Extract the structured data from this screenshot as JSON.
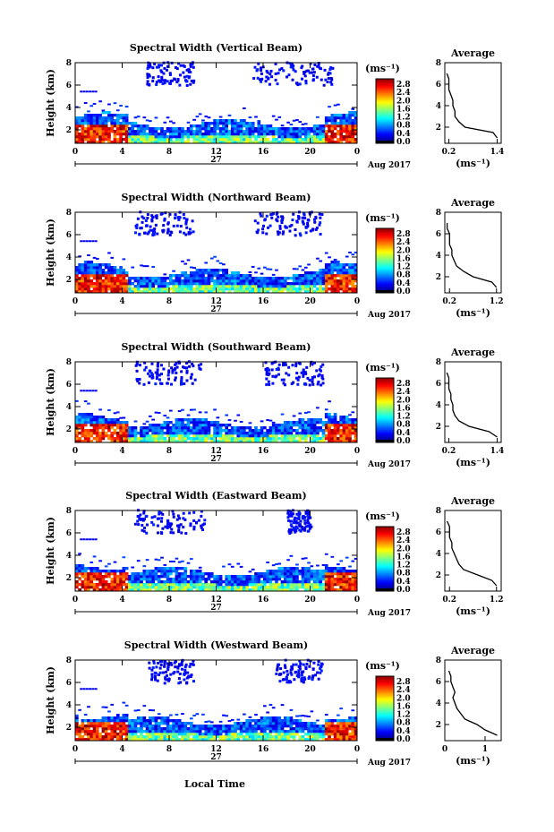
{
  "figure": {
    "xlabel": "Local Time",
    "date_label": "Aug 2017",
    "day_label": "27",
    "ylabel": "Height (km)",
    "cbar_unit": "(ms⁻¹)",
    "cbar_ticks": [
      "2.8",
      "2.4",
      "2.0",
      "1.6",
      "1.2",
      "0.8",
      "0.4",
      "0.0"
    ],
    "avg_title": "Average",
    "avg_xlabel": "(ms⁻¹)"
  },
  "chart_data": [
    {
      "type": "heatmap",
      "title": "Spectral Width (Vertical Beam)",
      "x_ticks": [
        "0",
        "4",
        "8",
        "12",
        "16",
        "20",
        "0"
      ],
      "xlim": [
        0,
        24
      ],
      "y_ticks": [
        "2",
        "4",
        "6",
        "8"
      ],
      "ylim": [
        0.8,
        8
      ],
      "clim": [
        0,
        2.8
      ],
      "upper_cloud": [
        [
          6,
          10
        ],
        [
          15,
          22
        ]
      ],
      "profile": {
        "title": "Average",
        "x_ticks": [
          "0.2",
          "1.4"
        ],
        "xlim": [
          0.1,
          1.5
        ],
        "y_ticks": [
          "2",
          "4",
          "6",
          "8"
        ],
        "heights": [
          1.0,
          1.5,
          2.0,
          2.5,
          3.0,
          3.5,
          4.0,
          4.5,
          5.0,
          5.5,
          6.0,
          6.5,
          7.0
        ],
        "values": [
          1.4,
          1.3,
          0.6,
          0.45,
          0.35,
          0.35,
          0.3,
          0.3,
          0.25,
          0.2,
          0.2,
          0.2,
          0.15
        ]
      }
    },
    {
      "type": "heatmap",
      "title": "Spectral Width (Northward Beam)",
      "x_ticks": [
        "0",
        "4",
        "8",
        "12",
        "16",
        "20",
        "0"
      ],
      "xlim": [
        0,
        24
      ],
      "y_ticks": [
        "2",
        "4",
        "6",
        "8"
      ],
      "ylim": [
        0.8,
        8
      ],
      "clim": [
        0,
        2.8
      ],
      "upper_cloud": [
        [
          5,
          10
        ],
        [
          15,
          21
        ]
      ],
      "profile": {
        "title": "Average",
        "x_ticks": [
          "0.2",
          "1.2"
        ],
        "xlim": [
          0.1,
          1.3
        ],
        "y_ticks": [
          "2",
          "4",
          "6",
          "8"
        ],
        "heights": [
          1.0,
          1.5,
          2.0,
          2.5,
          3.0,
          3.5,
          4.0,
          4.5,
          5.0,
          5.5,
          6.0,
          6.5,
          7.0
        ],
        "values": [
          1.2,
          1.1,
          0.7,
          0.5,
          0.35,
          0.3,
          0.25,
          0.25,
          0.2,
          0.2,
          0.2,
          0.15,
          0.15
        ]
      }
    },
    {
      "type": "heatmap",
      "title": "Spectral Width (Southward Beam)",
      "x_ticks": [
        "0",
        "4",
        "8",
        "12",
        "16",
        "20",
        "0"
      ],
      "xlim": [
        0,
        24
      ],
      "y_ticks": [
        "2",
        "4",
        "6",
        "8"
      ],
      "ylim": [
        0.8,
        8
      ],
      "clim": [
        0,
        2.8
      ],
      "upper_cloud": [
        [
          5,
          11
        ],
        [
          16,
          21
        ]
      ],
      "profile": {
        "title": "Average",
        "x_ticks": [
          "0.2",
          "1.4"
        ],
        "xlim": [
          0.1,
          1.5
        ],
        "y_ticks": [
          "2",
          "4",
          "6",
          "8"
        ],
        "heights": [
          1.0,
          1.5,
          2.0,
          2.5,
          3.0,
          3.5,
          4.0,
          4.5,
          5.0,
          5.5,
          6.0,
          6.5,
          7.0
        ],
        "values": [
          1.4,
          1.2,
          0.7,
          0.45,
          0.35,
          0.3,
          0.3,
          0.25,
          0.25,
          0.2,
          0.2,
          0.2,
          0.15
        ]
      }
    },
    {
      "type": "heatmap",
      "title": "Spectral Width (Eastward Beam)",
      "x_ticks": [
        "0",
        "4",
        "8",
        "12",
        "16",
        "20",
        "0"
      ],
      "xlim": [
        0,
        24
      ],
      "y_ticks": [
        "2",
        "4",
        "6",
        "8"
      ],
      "ylim": [
        0.8,
        8
      ],
      "clim": [
        0,
        2.8
      ],
      "upper_cloud": [
        [
          5,
          11
        ],
        [
          18,
          20
        ]
      ],
      "profile": {
        "title": "Average",
        "x_ticks": [
          "0.2",
          "1.2"
        ],
        "xlim": [
          0.1,
          1.3
        ],
        "y_ticks": [
          "2",
          "4",
          "6",
          "8"
        ],
        "heights": [
          1.0,
          1.5,
          2.0,
          2.5,
          3.0,
          3.5,
          4.0,
          4.5,
          5.0,
          5.5,
          6.0,
          6.5,
          7.0
        ],
        "values": [
          1.2,
          1.1,
          0.8,
          0.5,
          0.4,
          0.35,
          0.3,
          0.25,
          0.25,
          0.2,
          0.2,
          0.2,
          0.15
        ]
      }
    },
    {
      "type": "heatmap",
      "title": "Spectral Width (Westward Beam)",
      "x_ticks": [
        "0",
        "4",
        "8",
        "12",
        "16",
        "20",
        "0"
      ],
      "xlim": [
        0,
        24
      ],
      "y_ticks": [
        "2",
        "4",
        "6",
        "8"
      ],
      "ylim": [
        0.8,
        8
      ],
      "clim": [
        0,
        2.8
      ],
      "upper_cloud": [
        [
          6,
          10
        ],
        [
          17,
          21
        ]
      ],
      "profile": {
        "title": "Average",
        "x_ticks": [
          "0",
          "1"
        ],
        "xlim": [
          0,
          1.4
        ],
        "y_ticks": [
          "2",
          "4",
          "6",
          "8"
        ],
        "heights": [
          1.0,
          1.5,
          2.0,
          2.5,
          3.0,
          3.5,
          4.0,
          4.5,
          5.0,
          5.5,
          6.0,
          6.5,
          7.0
        ],
        "values": [
          1.3,
          1.0,
          0.8,
          0.5,
          0.4,
          0.3,
          0.25,
          0.2,
          0.25,
          0.2,
          0.15,
          0.15,
          0.1
        ]
      }
    }
  ]
}
